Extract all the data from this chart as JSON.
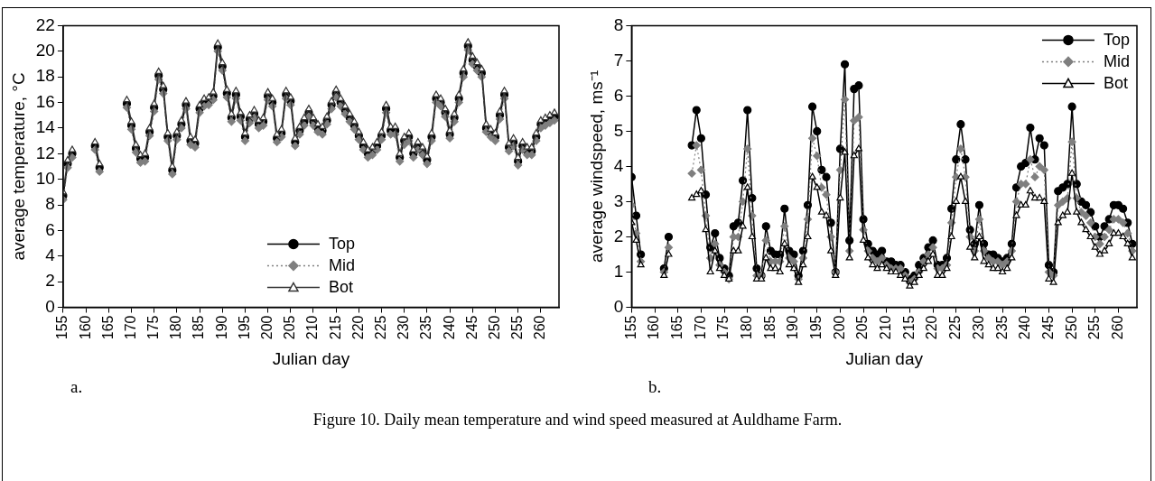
{
  "chart_data": [
    {
      "type": "line",
      "ylabel": "average temperature, °C",
      "xlabel": "Julian day",
      "annotations": [
        "a.",
        "Figure 10. Daily mean temperature and wind speed measured at Auldhame Farm."
      ],
      "xlim": [
        155,
        264
      ],
      "xticks": [
        155,
        160,
        165,
        170,
        175,
        180,
        185,
        190,
        195,
        200,
        205,
        210,
        215,
        220,
        225,
        230,
        235,
        240,
        245,
        250,
        255,
        260
      ],
      "ylim": [
        0,
        22
      ],
      "yticks": [
        0,
        2,
        4,
        6,
        8,
        10,
        12,
        14,
        16,
        18,
        20,
        22
      ],
      "grid": false,
      "legend": "bottom",
      "x": [
        155,
        156,
        157,
        158,
        159,
        160,
        161,
        162,
        163,
        164,
        165,
        166,
        167,
        168,
        169,
        170,
        171,
        172,
        173,
        174,
        175,
        176,
        177,
        178,
        179,
        180,
        181,
        182,
        183,
        184,
        185,
        186,
        187,
        188,
        189,
        190,
        191,
        192,
        193,
        194,
        195,
        196,
        197,
        198,
        199,
        200,
        201,
        202,
        203,
        204,
        205,
        206,
        207,
        208,
        209,
        210,
        211,
        212,
        213,
        214,
        215,
        216,
        217,
        218,
        219,
        220,
        221,
        222,
        223,
        224,
        225,
        226,
        227,
        228,
        229,
        230,
        231,
        232,
        233,
        234,
        235,
        236,
        237,
        238,
        239,
        240,
        241,
        242,
        243,
        244,
        245,
        246,
        247,
        248,
        249,
        250,
        251,
        252,
        253,
        254,
        255,
        256,
        257,
        258,
        259,
        260,
        261,
        262,
        263
      ],
      "series": [
        {
          "name": "Top",
          "color": "#000000",
          "marker": "circle",
          "line_style": "solid",
          "values": [
            8.7,
            11.2,
            12.0,
            null,
            null,
            null,
            null,
            12.6,
            10.9,
            null,
            null,
            null,
            null,
            null,
            15.9,
            14.2,
            12.4,
            11.6,
            11.7,
            13.7,
            15.6,
            18.1,
            17.0,
            13.3,
            10.7,
            13.4,
            14.3,
            15.8,
            13.0,
            12.8,
            15.5,
            16.0,
            16.1,
            16.5,
            20.3,
            18.8,
            16.7,
            14.8,
            16.6,
            14.9,
            13.3,
            14.7,
            15.1,
            14.3,
            14.5,
            16.5,
            16.0,
            13.2,
            13.6,
            16.6,
            16.1,
            12.9,
            13.8,
            14.5,
            15.2,
            14.5,
            14.0,
            13.8,
            14.6,
            15.8,
            16.7,
            16.0,
            15.4,
            14.8,
            14.2,
            13.4,
            12.6,
            12.0,
            12.2,
            12.6,
            13.4,
            15.5,
            13.8,
            13.8,
            11.7,
            13.0,
            13.3,
            12.0,
            12.6,
            12.2,
            11.5,
            13.3,
            16.3,
            16.0,
            15.2,
            13.5,
            14.8,
            16.3,
            18.3,
            20.4,
            19.3,
            18.8,
            18.3,
            14.0,
            13.6,
            13.3,
            15.0,
            16.6,
            12.5,
            12.9,
            11.4,
            12.6,
            12.2,
            12.2,
            13.3,
            14.3,
            14.5,
            14.7,
            14.9
          ]
        },
        {
          "name": "Mid",
          "color": "#7f7f7f",
          "marker": "diamond",
          "line_style": "dotted",
          "values": [
            8.4,
            10.9,
            11.7,
            null,
            null,
            null,
            null,
            12.3,
            10.6,
            null,
            null,
            null,
            null,
            null,
            15.6,
            13.9,
            12.1,
            11.3,
            11.4,
            13.4,
            15.3,
            17.8,
            16.7,
            13.0,
            10.4,
            13.1,
            14.0,
            15.5,
            12.7,
            12.5,
            15.2,
            15.7,
            15.8,
            16.2,
            20.0,
            18.5,
            16.4,
            14.5,
            16.3,
            14.6,
            13.0,
            14.4,
            14.8,
            14.0,
            14.2,
            16.2,
            15.7,
            12.9,
            13.3,
            16.3,
            15.8,
            12.6,
            13.5,
            14.2,
            14.9,
            14.2,
            13.7,
            13.5,
            14.3,
            15.5,
            16.4,
            15.7,
            15.1,
            14.5,
            13.9,
            13.1,
            12.3,
            11.7,
            11.9,
            12.3,
            13.1,
            15.2,
            13.5,
            13.5,
            11.4,
            12.7,
            13.0,
            11.7,
            12.3,
            11.9,
            11.2,
            13.0,
            16.0,
            15.7,
            14.9,
            13.2,
            14.5,
            16.0,
            18.0,
            20.1,
            19.0,
            18.5,
            18.0,
            13.7,
            13.3,
            13.0,
            14.7,
            16.3,
            12.2,
            12.6,
            11.1,
            12.3,
            11.9,
            11.9,
            13.0,
            14.0,
            14.2,
            14.4,
            14.6
          ]
        },
        {
          "name": "Bot",
          "color": "#333333",
          "marker": "triangle",
          "line_style": "solid",
          "values": [
            9.0,
            11.5,
            12.3,
            null,
            null,
            null,
            null,
            12.9,
            11.2,
            null,
            null,
            null,
            null,
            null,
            16.2,
            14.5,
            12.7,
            11.9,
            12.0,
            14.0,
            15.9,
            18.4,
            17.3,
            13.6,
            11.0,
            13.7,
            14.6,
            16.1,
            13.3,
            13.1,
            15.8,
            16.3,
            16.4,
            16.8,
            20.6,
            19.1,
            17.0,
            15.1,
            16.9,
            15.2,
            13.6,
            15.0,
            15.4,
            14.6,
            14.8,
            16.8,
            16.3,
            13.5,
            13.9,
            16.9,
            16.4,
            13.2,
            14.1,
            14.8,
            15.5,
            14.8,
            14.3,
            14.1,
            14.9,
            16.1,
            17.0,
            16.3,
            15.7,
            15.1,
            14.5,
            13.7,
            12.9,
            12.3,
            12.5,
            12.9,
            13.7,
            15.8,
            14.1,
            14.1,
            12.0,
            13.3,
            13.6,
            12.3,
            12.9,
            12.5,
            11.8,
            13.6,
            16.6,
            16.3,
            15.5,
            13.8,
            15.1,
            16.6,
            18.6,
            20.7,
            19.6,
            19.1,
            18.6,
            14.3,
            13.9,
            13.6,
            15.3,
            16.9,
            12.8,
            13.2,
            11.7,
            12.9,
            12.5,
            12.5,
            13.6,
            14.6,
            14.8,
            15.0,
            15.2
          ]
        }
      ]
    },
    {
      "type": "line",
      "ylabel": "average windspeed, ms⁻¹",
      "xlabel": "Julian day",
      "annotations": [
        "b."
      ],
      "xlim": [
        155,
        264
      ],
      "xticks": [
        155,
        160,
        165,
        170,
        175,
        180,
        185,
        190,
        195,
        200,
        205,
        210,
        215,
        220,
        225,
        230,
        235,
        240,
        245,
        250,
        255,
        260
      ],
      "ylim": [
        0,
        8
      ],
      "yticks": [
        0,
        1,
        2,
        3,
        4,
        5,
        6,
        7,
        8
      ],
      "grid": false,
      "legend": "top right",
      "x": [
        155,
        156,
        157,
        158,
        159,
        160,
        161,
        162,
        163,
        164,
        165,
        166,
        167,
        168,
        169,
        170,
        171,
        172,
        173,
        174,
        175,
        176,
        177,
        178,
        179,
        180,
        181,
        182,
        183,
        184,
        185,
        186,
        187,
        188,
        189,
        190,
        191,
        192,
        193,
        194,
        195,
        196,
        197,
        198,
        199,
        200,
        201,
        202,
        203,
        204,
        205,
        206,
        207,
        208,
        209,
        210,
        211,
        212,
        213,
        214,
        215,
        216,
        217,
        218,
        219,
        220,
        221,
        222,
        223,
        224,
        225,
        226,
        227,
        228,
        229,
        230,
        231,
        232,
        233,
        234,
        235,
        236,
        237,
        238,
        239,
        240,
        241,
        242,
        243,
        244,
        245,
        246,
        247,
        248,
        249,
        250,
        251,
        252,
        253,
        254,
        255,
        256,
        257,
        258,
        259,
        260,
        261,
        262,
        263
      ],
      "series": [
        {
          "name": "Top",
          "color": "#000000",
          "marker": "circle",
          "line_style": "solid",
          "values": [
            3.7,
            2.6,
            1.5,
            null,
            null,
            null,
            null,
            1.1,
            2.0,
            null,
            null,
            null,
            null,
            4.6,
            5.6,
            4.8,
            3.2,
            1.7,
            2.1,
            1.4,
            1.1,
            0.9,
            2.3,
            2.4,
            3.6,
            5.6,
            3.1,
            1.1,
            0.9,
            2.3,
            1.6,
            1.5,
            1.5,
            2.8,
            1.6,
            1.5,
            0.9,
            1.6,
            2.9,
            5.7,
            5.0,
            3.9,
            3.7,
            2.4,
            1.0,
            4.5,
            6.9,
            1.9,
            6.2,
            6.3,
            2.5,
            1.8,
            1.6,
            1.5,
            1.6,
            1.3,
            1.3,
            1.2,
            1.2,
            1.0,
            0.8,
            0.9,
            1.2,
            1.4,
            1.7,
            1.9,
            1.2,
            1.2,
            1.4,
            2.8,
            4.2,
            5.2,
            4.2,
            2.2,
            1.8,
            2.9,
            1.8,
            1.5,
            1.5,
            1.4,
            1.3,
            1.4,
            1.8,
            3.4,
            4.0,
            4.1,
            5.1,
            4.2,
            4.8,
            4.6,
            1.2,
            1.0,
            3.3,
            3.4,
            3.5,
            5.7,
            3.5,
            3.0,
            2.9,
            2.7,
            2.3,
            2.0,
            2.3,
            2.5,
            2.9,
            2.9,
            2.8,
            2.4,
            1.8
          ]
        },
        {
          "name": "Mid",
          "color": "#7f7f7f",
          "marker": "diamond",
          "line_style": "dotted",
          "values": [
            2.9,
            2.1,
            1.3,
            null,
            null,
            null,
            null,
            1.0,
            1.7,
            null,
            null,
            null,
            null,
            3.8,
            4.6,
            3.9,
            2.6,
            1.4,
            1.8,
            1.2,
            1.0,
            0.8,
            2.0,
            2.0,
            3.0,
            4.5,
            2.6,
            0.9,
            0.9,
            1.9,
            1.3,
            1.3,
            1.3,
            2.3,
            1.4,
            1.3,
            0.8,
            1.4,
            2.5,
            4.8,
            4.3,
            3.4,
            3.2,
            2.0,
            1.0,
            3.9,
            5.9,
            1.6,
            5.3,
            5.4,
            2.2,
            1.6,
            1.4,
            1.3,
            1.4,
            1.2,
            1.1,
            1.1,
            1.1,
            0.9,
            0.7,
            0.8,
            1.0,
            1.3,
            1.5,
            1.7,
            1.1,
            1.1,
            1.2,
            2.4,
            3.7,
            4.5,
            3.7,
            2.0,
            1.6,
            2.5,
            1.6,
            1.4,
            1.3,
            1.3,
            1.2,
            1.3,
            1.6,
            3.0,
            3.5,
            3.5,
            4.2,
            3.7,
            4.0,
            3.9,
            1.0,
            0.9,
            2.9,
            3.0,
            3.1,
            4.7,
            3.1,
            2.7,
            2.6,
            2.4,
            2.0,
            1.8,
            2.0,
            2.2,
            2.5,
            2.5,
            2.4,
            2.1,
            1.6
          ]
        },
        {
          "name": "Bot",
          "color": "#000000",
          "marker": "triangle",
          "line_style": "solid",
          "values": [
            2.4,
            1.9,
            1.2,
            null,
            null,
            null,
            null,
            0.9,
            1.5,
            null,
            null,
            null,
            null,
            3.1,
            3.2,
            3.3,
            2.2,
            1.0,
            1.6,
            1.1,
            0.9,
            0.8,
            1.6,
            1.6,
            2.3,
            3.4,
            2.0,
            0.8,
            0.8,
            1.4,
            1.1,
            1.1,
            1.0,
            1.8,
            1.2,
            1.1,
            0.7,
            1.2,
            2.0,
            3.7,
            3.4,
            2.7,
            2.6,
            1.6,
            0.9,
            3.1,
            4.4,
            1.4,
            4.3,
            4.5,
            1.9,
            1.4,
            1.2,
            1.1,
            1.2,
            1.1,
            1.0,
            1.0,
            0.9,
            0.8,
            0.6,
            0.7,
            0.9,
            1.1,
            1.3,
            1.5,
            0.9,
            0.9,
            1.1,
            2.0,
            3.0,
            3.7,
            3.0,
            1.7,
            1.4,
            2.0,
            1.3,
            1.2,
            1.1,
            1.1,
            1.0,
            1.1,
            1.4,
            2.6,
            2.9,
            2.9,
            3.3,
            3.1,
            3.1,
            3.0,
            0.8,
            0.7,
            2.4,
            2.6,
            2.7,
            3.8,
            2.7,
            2.4,
            2.2,
            2.0,
            1.7,
            1.5,
            1.6,
            1.8,
            2.1,
            2.1,
            2.0,
            1.8,
            1.4
          ]
        }
      ]
    }
  ]
}
